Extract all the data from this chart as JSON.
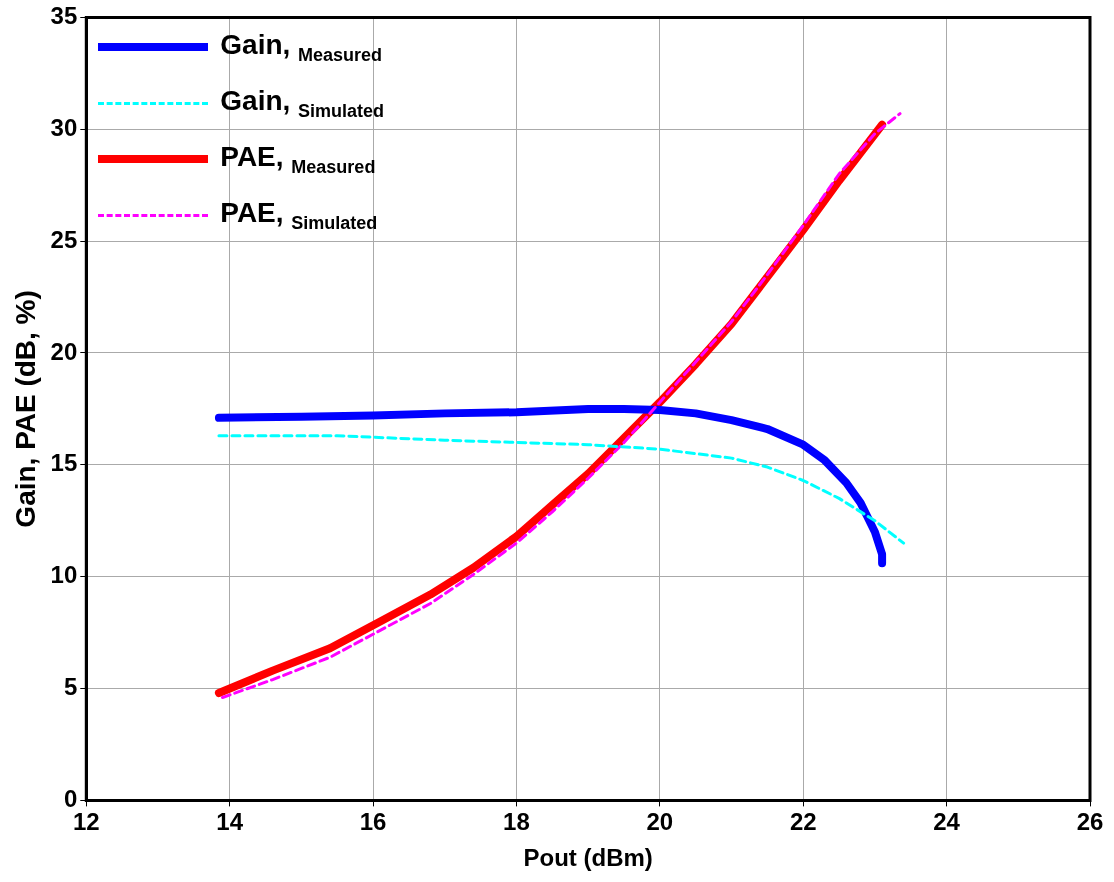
{
  "chart_data": {
    "type": "line",
    "xlabel": "Pout (dBm)",
    "ylabel": "Gain, PAE (dB, %)",
    "xlim": [
      12,
      26
    ],
    "xticks": [
      12,
      14,
      16,
      18,
      20,
      22,
      24,
      26
    ],
    "ylim": [
      0,
      35
    ],
    "yticks": [
      0,
      5,
      10,
      15,
      20,
      25,
      30,
      35
    ],
    "grid": true,
    "legend": "top left",
    "marker": "none",
    "series": [
      {
        "name": "Gain, $_{Measured}$",
        "color": "#0000ff",
        "line_style": "solid",
        "x": [
          13.85,
          15,
          16,
          17,
          18,
          19,
          19.5,
          20,
          20.5,
          21,
          21.5,
          22,
          22.3,
          22.6,
          22.8,
          23,
          23.1,
          23.1
        ],
        "values": [
          17.1,
          17.15,
          17.2,
          17.3,
          17.35,
          17.5,
          17.5,
          17.45,
          17.3,
          17.0,
          16.6,
          15.9,
          15.2,
          14.2,
          13.3,
          12.0,
          11.0,
          10.6
        ]
      },
      {
        "name": "Gain, $_{Simulated}$",
        "color": "#00ffff",
        "line_style": "dashed",
        "x": [
          13.85,
          15.5,
          17,
          18,
          19,
          20,
          21,
          21.5,
          22,
          22.5,
          23,
          23.4
        ],
        "values": [
          16.3,
          16.3,
          16.1,
          16.0,
          15.9,
          15.7,
          15.3,
          14.9,
          14.3,
          13.5,
          12.5,
          11.5
        ]
      },
      {
        "name": "PAE, $_{Measured}$",
        "color": "#ff0000",
        "line_style": "solid",
        "x": [
          13.85,
          14.6,
          15.4,
          16.1,
          16.8,
          17.4,
          18,
          18.5,
          19,
          19.5,
          20,
          20.5,
          21,
          21.5,
          22,
          22.5,
          23.1
        ],
        "values": [
          4.8,
          5.8,
          6.8,
          8.0,
          9.2,
          10.4,
          11.8,
          13.2,
          14.6,
          16.2,
          17.8,
          19.5,
          21.3,
          23.4,
          25.5,
          27.7,
          30.2
        ]
      },
      {
        "name": "PAE, $_{Simulated}$",
        "color": "#ff00ff",
        "line_style": "dashed",
        "x": [
          13.9,
          14.6,
          15.4,
          16.1,
          16.8,
          17.4,
          18,
          18.5,
          19,
          19.5,
          20,
          20.5,
          21,
          21.5,
          22,
          22.5,
          23,
          23.35
        ],
        "values": [
          4.6,
          5.4,
          6.4,
          7.6,
          8.8,
          10.1,
          11.5,
          12.9,
          14.4,
          16.0,
          17.8,
          19.6,
          21.4,
          23.5,
          25.7,
          28.0,
          29.8,
          30.7
        ]
      }
    ]
  }
}
